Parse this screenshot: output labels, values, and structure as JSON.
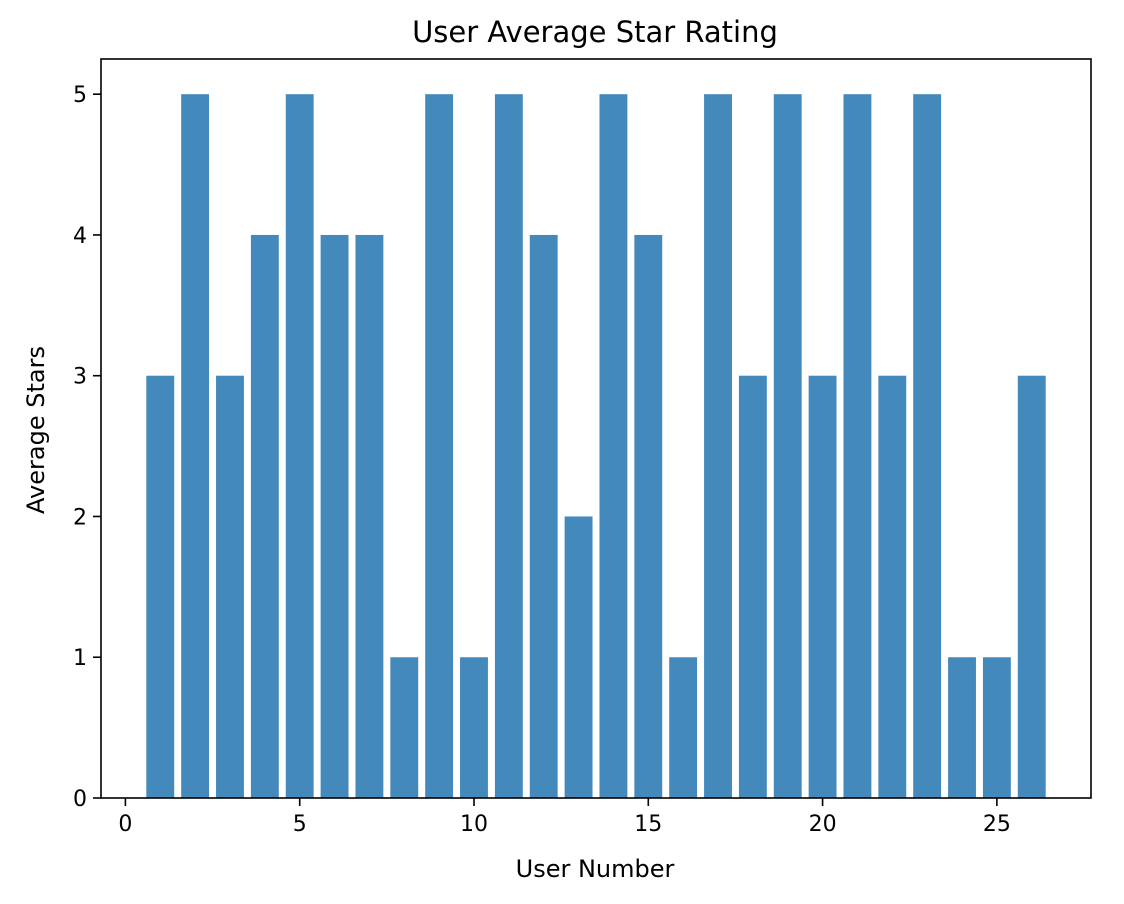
{
  "chart_data": {
    "type": "bar",
    "title": "User Average Star Rating",
    "xlabel": "User Number",
    "ylabel": "Average Stars",
    "x": [
      1,
      2,
      3,
      4,
      5,
      6,
      7,
      8,
      9,
      10,
      11,
      12,
      13,
      14,
      15,
      16,
      17,
      18,
      19,
      20,
      21,
      22,
      23,
      24,
      25,
      26
    ],
    "values": [
      3,
      5,
      3,
      4,
      5,
      4,
      4,
      1,
      5,
      1,
      5,
      4,
      2,
      5,
      4,
      1,
      5,
      3,
      5,
      3,
      5,
      3,
      5,
      1,
      1,
      3
    ],
    "xlim": [
      -0.7,
      27.7
    ],
    "ylim": [
      0,
      5.25
    ],
    "xticks": [
      0,
      5,
      10,
      15,
      20,
      25
    ],
    "yticks": [
      0,
      1,
      2,
      3,
      4,
      5
    ],
    "bar_color": "#4389bb",
    "grid": false,
    "legend": "none"
  }
}
